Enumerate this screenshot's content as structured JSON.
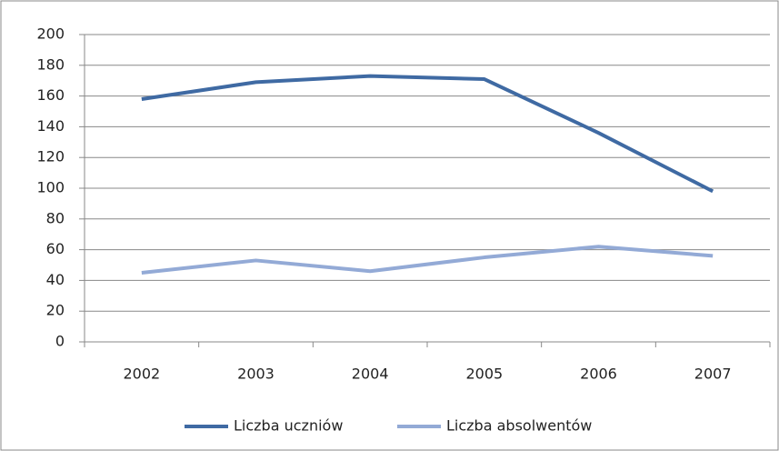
{
  "chart_data": {
    "type": "line",
    "categories": [
      "2002",
      "2003",
      "2004",
      "2005",
      "2006",
      "2007"
    ],
    "series": [
      {
        "name": "Liczba uczniów",
        "color": "#3f6aa3",
        "values": [
          158,
          169,
          173,
          171,
          136,
          98
        ]
      },
      {
        "name": "Liczba absolwentów",
        "color": "#93aad6",
        "values": [
          45,
          53,
          46,
          55,
          62,
          56
        ]
      }
    ],
    "ylim": [
      0,
      200
    ],
    "yticks": [
      0,
      20,
      40,
      60,
      80,
      100,
      120,
      140,
      160,
      180,
      200
    ],
    "grid": true,
    "legend": "bottom"
  }
}
